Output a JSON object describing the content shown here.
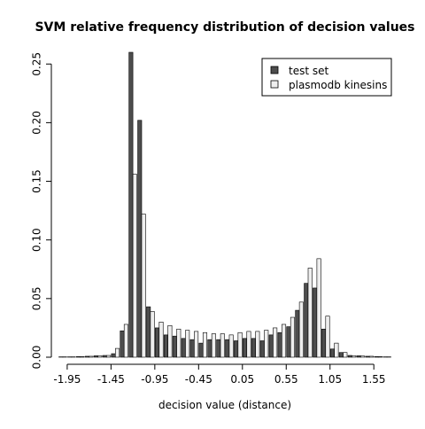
{
  "chart_data": {
    "type": "bar",
    "title": "SVM relative frequency distribution of decision values",
    "xlabel": "decision value (distance)",
    "ylabel": "",
    "ylim": [
      0,
      0.26
    ],
    "yticks": [
      "0.00",
      "0.05",
      "0.10",
      "0.15",
      "0.20",
      "0.25"
    ],
    "xticks": [
      "-1.95",
      "-1.45",
      "-0.95",
      "-0.45",
      "0.05",
      "0.55",
      "1.05",
      "1.55"
    ],
    "grid": false,
    "legend_position": "top-right",
    "series": [
      {
        "name": "test set",
        "color": "#4d4d4d",
        "values": [
          0.0003,
          0.0003,
          0.0005,
          0.0008,
          0.0012,
          0.0015,
          0.003,
          0.0225,
          0.26,
          0.202,
          0.043,
          0.025,
          0.019,
          0.018,
          0.016,
          0.015,
          0.012,
          0.015,
          0.015,
          0.015,
          0.014,
          0.016,
          0.016,
          0.014,
          0.019,
          0.021,
          0.026,
          0.04,
          0.063,
          0.059,
          0.024,
          0.007,
          0.004,
          0.0015,
          0.0012,
          0.0008,
          0.0005,
          0.0003
        ]
      },
      {
        "name": "plasmodb kinesins",
        "color": "#eeeeee",
        "values": [
          0.0003,
          0.0003,
          0.0005,
          0.0008,
          0.0012,
          0.0015,
          0.0075,
          0.028,
          0.156,
          0.122,
          0.039,
          0.03,
          0.027,
          0.024,
          0.023,
          0.022,
          0.021,
          0.02,
          0.02,
          0.019,
          0.021,
          0.022,
          0.022,
          0.023,
          0.025,
          0.028,
          0.034,
          0.047,
          0.076,
          0.084,
          0.035,
          0.012,
          0.004,
          0.0012,
          0.001,
          0.0008,
          0.0005,
          0.0003
        ]
      }
    ],
    "x_start": -2.05,
    "bin_width": 0.1
  }
}
